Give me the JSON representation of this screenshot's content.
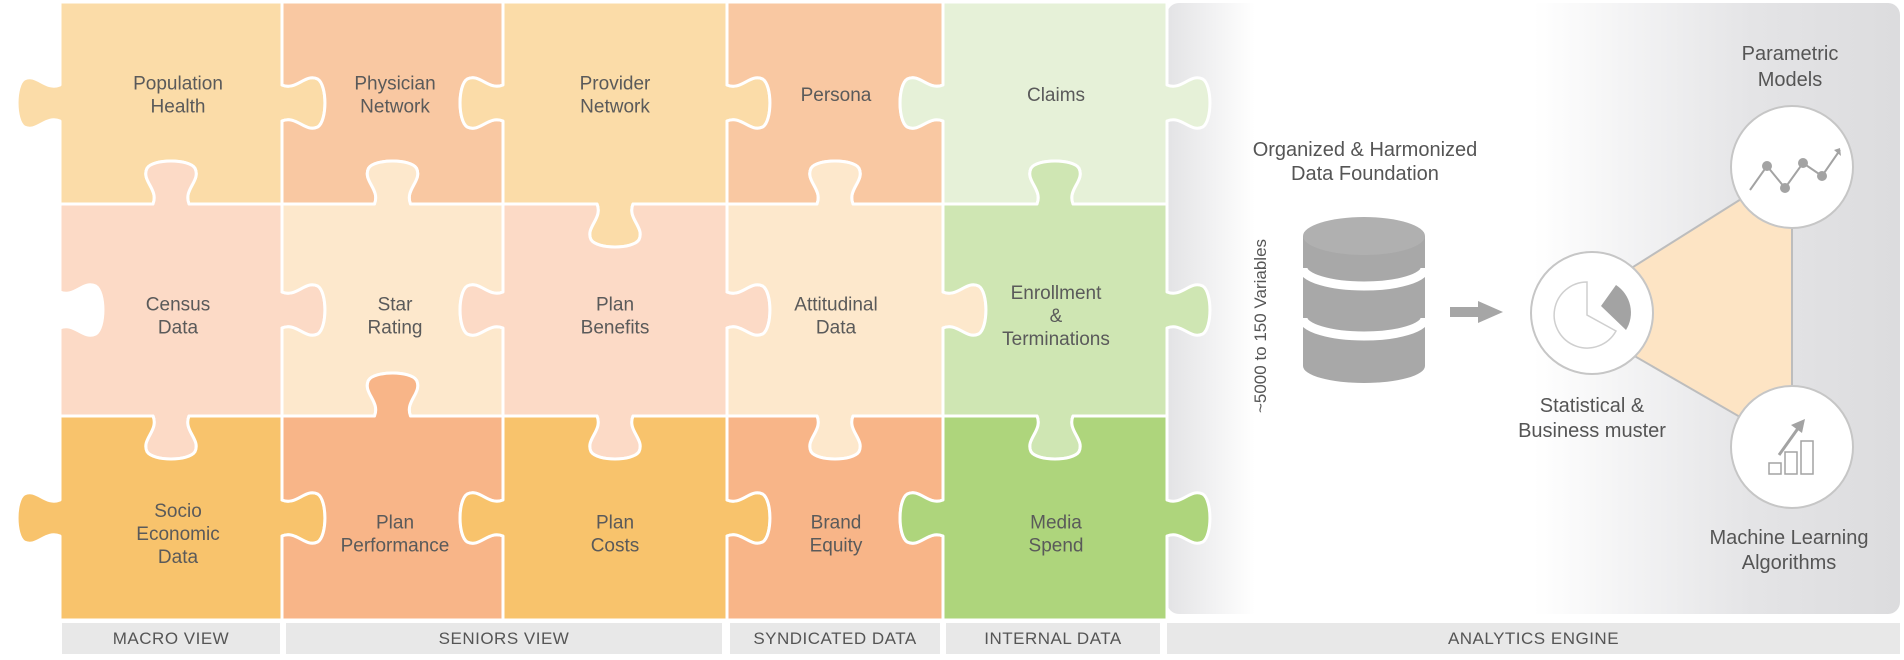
{
  "puzzle": {
    "grid": [
      [
        "Population\nHealth",
        "Physician\nNetwork",
        "Provider\nNetwork",
        "Persona",
        "Claims"
      ],
      [
        "Census\nData",
        "Star\nRating",
        "Plan\nBenefits",
        "Attitudinal\nData",
        "Enrollment\n&\nTerminations"
      ],
      [
        "Socio\nEconomic\nData",
        "Plan\nPerformance",
        "Plan\nCosts",
        "Brand\nEquity",
        "Media\nSpend"
      ]
    ],
    "colors": [
      [
        "#fbdca8",
        "#f9c8a2",
        "#fbdca8",
        "#f9c8a2",
        "#e6f1d8"
      ],
      [
        "#fcdac6",
        "#fde8cc",
        "#fcdac6",
        "#fde8cc",
        "#cfe6b3"
      ],
      [
        "#f8c36c",
        "#f8b588",
        "#f8c36c",
        "#f8b588",
        "#aed57c"
      ]
    ]
  },
  "categories": [
    "MACRO VIEW",
    "SENIORS VIEW",
    "SYNDICATED DATA",
    "INTERNAL DATA",
    "ANALYTICS ENGINE"
  ],
  "engine": {
    "variables_label": "~5000 to 150 Variables",
    "foundation_line1": "Organized & Harmonized",
    "foundation_line2": "Data Foundation",
    "parametric_line1": "Parametric",
    "parametric_line2": "Models",
    "statistical_line1": "Statistical &",
    "statistical_line2": "Business muster",
    "ml_line1": "Machine Learning",
    "ml_line2": "Algorithms"
  }
}
